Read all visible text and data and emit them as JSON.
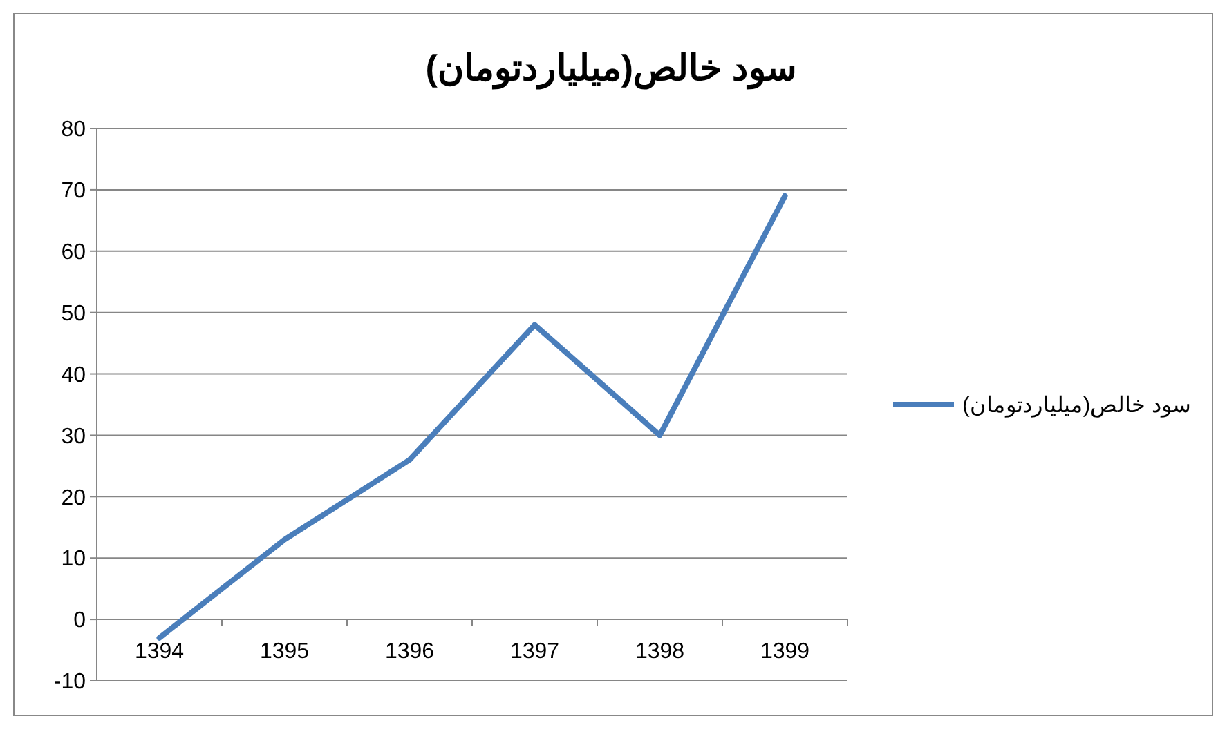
{
  "chart_data": {
    "type": "line",
    "title": "سود خالص(میلیاردتومان)",
    "categories": [
      "1394",
      "1395",
      "1396",
      "1397",
      "1398",
      "1399"
    ],
    "series": [
      {
        "name": "سود خالص(میلیاردتومان)",
        "color": "#4a7ebb",
        "values": [
          -3,
          13,
          26,
          48,
          30,
          69
        ]
      }
    ],
    "ylim": [
      -10,
      80
    ],
    "yticks": [
      -10,
      0,
      10,
      20,
      30,
      40,
      50,
      60,
      70,
      80
    ],
    "grid": "y",
    "legend": "right",
    "marker": "none",
    "line_style": "solid"
  }
}
